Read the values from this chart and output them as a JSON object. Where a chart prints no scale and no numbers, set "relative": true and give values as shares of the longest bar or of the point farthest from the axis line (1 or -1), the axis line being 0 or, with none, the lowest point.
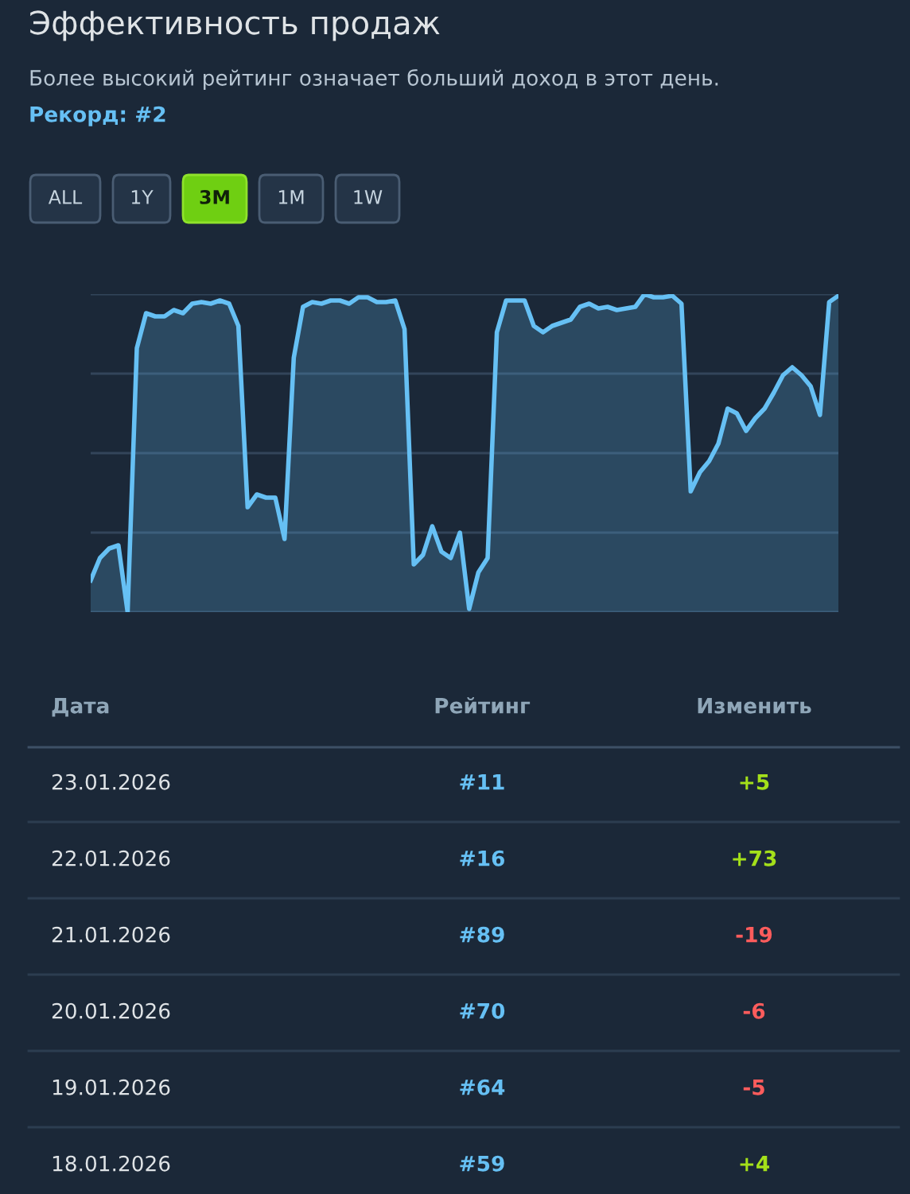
{
  "chart_data": {
    "type": "area",
    "title": "Эффективность продаж",
    "subtitle": "Более высокий рейтинг означает больший доход в этот день.",
    "relative": true,
    "grid": "y",
    "legend": false,
    "categories": [
      null,
      null,
      null,
      null,
      null,
      null,
      null,
      null,
      null,
      null,
      null,
      null,
      null,
      null,
      null,
      null,
      null,
      null,
      null,
      null,
      null,
      null,
      null,
      null,
      null,
      null,
      null,
      null,
      null,
      null,
      null,
      null,
      null,
      null,
      null,
      null,
      null,
      null,
      null,
      null,
      null,
      null,
      null,
      null,
      null,
      null,
      null,
      null,
      null,
      null,
      null,
      null,
      null,
      null,
      null,
      null,
      null,
      null,
      null,
      null,
      null,
      null,
      null,
      null,
      null,
      null,
      null,
      null,
      null,
      null,
      null,
      null,
      null,
      null,
      null,
      null,
      null,
      null,
      null,
      null,
      null,
      null
    ],
    "series": [
      {
        "color": "#66c0f4",
        "values": [
          0.1,
          0.17,
          0.2,
          0.21,
          0,
          0.83,
          0.94,
          0.93,
          0.93,
          0.95,
          0.94,
          0.97,
          0.975,
          0.97,
          0.98,
          0.97,
          0.9,
          0.33,
          0.37,
          0.36,
          0.36,
          0.23,
          0.8,
          0.96,
          0.975,
          0.97,
          0.98,
          0.98,
          0.97,
          0.99,
          0.99,
          0.975,
          0.975,
          0.98,
          0.89,
          0.15,
          0.18,
          0.27,
          0.19,
          0.17,
          0.25,
          0.01,
          0.125,
          0.17,
          0.88,
          0.98,
          0.98,
          0.98,
          0.9,
          0.88,
          0.9,
          0.91,
          0.92,
          0.96,
          0.97,
          0.955,
          0.96,
          0.95,
          0.955,
          0.96,
          1.0,
          0.99,
          0.99,
          0.995,
          0.97,
          0.38,
          0.44,
          0.475,
          0.53,
          0.64,
          0.625,
          0.57,
          0.61,
          0.64,
          0.69,
          0.745,
          0.77,
          0.745,
          0.71,
          0.62,
          0.975,
          0.995
        ]
      }
    ],
    "annotations": [
      "Рекорд: #2",
      "ALL",
      "1Y",
      "3M",
      "1M",
      "1W",
      "Дата",
      "Рейтинг",
      "Изменить",
      "23.01.2026",
      "#11",
      "+5",
      "22.01.2026",
      "#16",
      "+73",
      "21.01.2026",
      "#89",
      "-19",
      "20.01.2026",
      "#70",
      "-6",
      "19.01.2026",
      "#64",
      "-5",
      "18.01.2026",
      "#59",
      "+4"
    ]
  }
}
